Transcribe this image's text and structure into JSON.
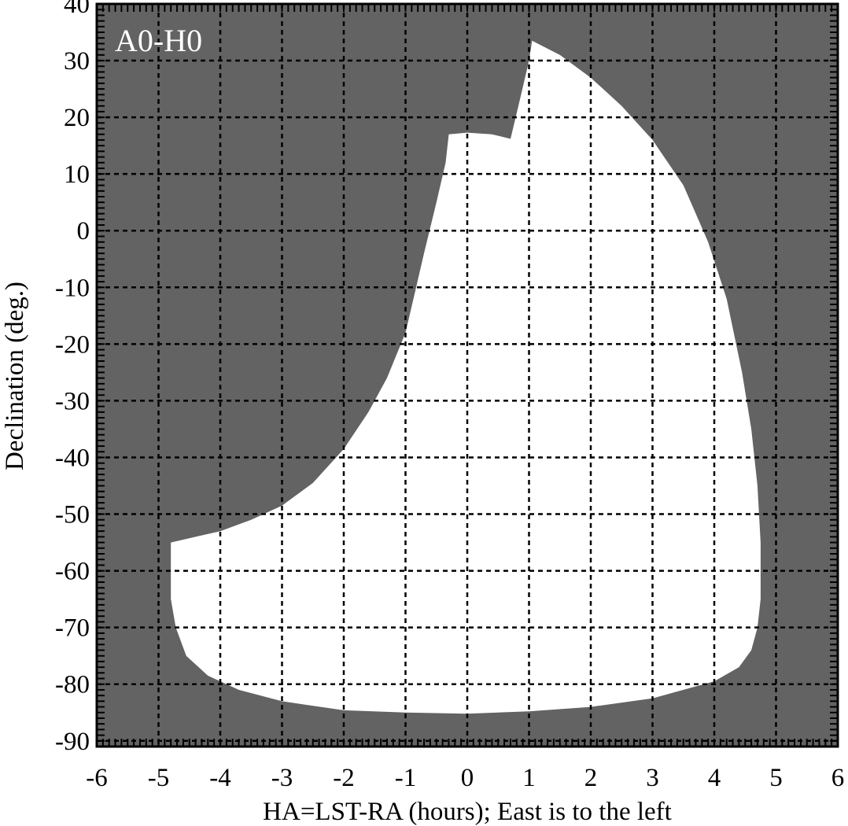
{
  "chart_data": {
    "type": "area",
    "panel_label": "A0-H0",
    "xlabel": "HA=LST-RA (hours); East is to the left",
    "ylabel": "Declination (deg.)",
    "xlim": [
      -6,
      6
    ],
    "ylim": [
      -91,
      40
    ],
    "x_ticks": [
      -6,
      -5,
      -4,
      -3,
      -2,
      -1,
      0,
      1,
      2,
      3,
      4,
      5,
      6
    ],
    "y_ticks": [
      -90,
      -80,
      -70,
      -60,
      -50,
      -40,
      -30,
      -20,
      -10,
      0,
      10,
      20,
      30,
      40
    ],
    "grid": true,
    "colors": {
      "background_region": "#636363",
      "observable_region": "#ffffff",
      "grid": "#000000",
      "panel_label": "#ffffff"
    },
    "observable_region_boundary": [
      [
        -4.8,
        -55.0
      ],
      [
        -4.0,
        -53.0
      ],
      [
        -3.5,
        -51.0
      ],
      [
        -3.0,
        -48.5
      ],
      [
        -2.5,
        -44.5
      ],
      [
        -2.0,
        -38.5
      ],
      [
        -1.6,
        -32.0
      ],
      [
        -1.3,
        -26.0
      ],
      [
        -1.0,
        -18.0
      ],
      [
        -0.85,
        -11.0
      ],
      [
        -0.7,
        -4.0
      ],
      [
        -0.5,
        5.0
      ],
      [
        -0.35,
        12.0
      ],
      [
        -0.3,
        17.0
      ],
      [
        0.0,
        17.3
      ],
      [
        0.4,
        17.0
      ],
      [
        0.7,
        16.2
      ],
      [
        0.85,
        23.0
      ],
      [
        1.0,
        30.0
      ],
      [
        1.05,
        33.5
      ],
      [
        1.5,
        31.0
      ],
      [
        2.0,
        27.0
      ],
      [
        2.5,
        22.0
      ],
      [
        3.0,
        16.0
      ],
      [
        3.5,
        8.0
      ],
      [
        3.9,
        -2.0
      ],
      [
        4.2,
        -12.0
      ],
      [
        4.45,
        -25.0
      ],
      [
        4.6,
        -35.0
      ],
      [
        4.7,
        -45.0
      ],
      [
        4.75,
        -55.0
      ],
      [
        4.75,
        -65.0
      ],
      [
        4.7,
        -70.0
      ],
      [
        4.6,
        -74.0
      ],
      [
        4.4,
        -77.0
      ],
      [
        4.0,
        -79.5
      ],
      [
        3.5,
        -81.0
      ],
      [
        3.0,
        -82.5
      ],
      [
        2.0,
        -84.0
      ],
      [
        1.0,
        -84.8
      ],
      [
        0.0,
        -85.2
      ],
      [
        -1.0,
        -85.0
      ],
      [
        -2.0,
        -84.6
      ],
      [
        -3.0,
        -83.0
      ],
      [
        -3.7,
        -81.0
      ],
      [
        -4.2,
        -78.5
      ],
      [
        -4.55,
        -75.0
      ],
      [
        -4.72,
        -70.0
      ],
      [
        -4.8,
        -65.0
      ],
      [
        -4.8,
        -55.0
      ]
    ]
  }
}
